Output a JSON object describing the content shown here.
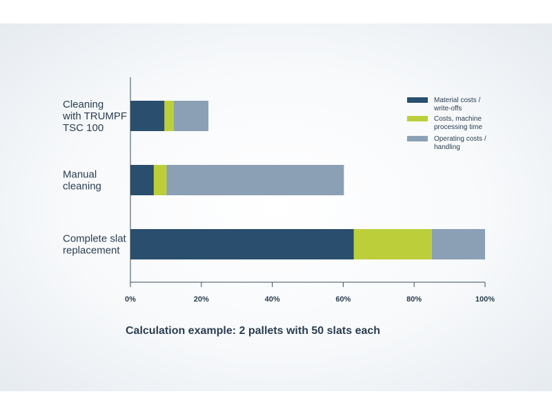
{
  "chart_data": {
    "type": "bar",
    "orientation": "horizontal",
    "stacked": true,
    "categories": [
      [
        "Cleaning",
        "with TRUMPF",
        "TSC 100"
      ],
      [
        "Manual",
        "cleaning"
      ],
      [
        "Complete slat",
        "replacement"
      ]
    ],
    "series": [
      {
        "name": [
          "Material costs /",
          "write-offs"
        ],
        "color": "#2a4e6e",
        "values": [
          9.6,
          6.6,
          63
        ]
      },
      {
        "name": [
          "Costs, machine",
          "processing time"
        ],
        "color": "#bccf3a",
        "values": [
          2.6,
          3.6,
          22
        ]
      },
      {
        "name": [
          "Operating costs /",
          "handling"
        ],
        "color": "#8ba0b4",
        "values": [
          9.8,
          50,
          15
        ]
      }
    ],
    "xlim": [
      0,
      100
    ],
    "xticks": [
      0,
      20,
      40,
      60,
      80,
      100
    ],
    "xtick_labels": [
      "0%",
      "20%",
      "40%",
      "60%",
      "80%",
      "100%"
    ],
    "legend_position": "top-right",
    "grid": false
  },
  "caption": "Calculation example: 2 pallets with 50 slats each"
}
